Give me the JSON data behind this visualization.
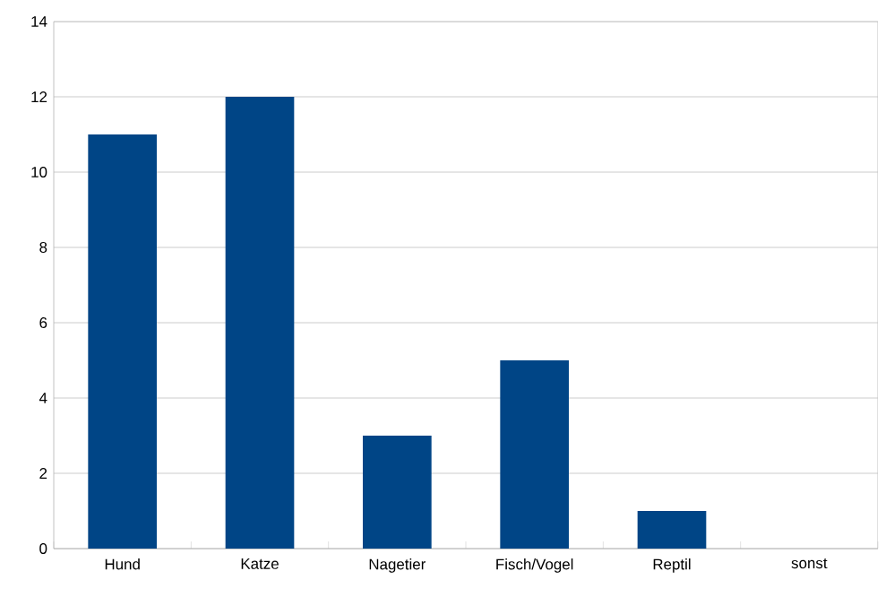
{
  "chart_data": {
    "type": "bar",
    "categories": [
      "Hund",
      "Katze",
      "Nagetier",
      "Fisch/Vogel",
      "Reptil",
      "sonst"
    ],
    "values": [
      11,
      12,
      3,
      5,
      1,
      0
    ],
    "color": "#004586",
    "ylim": [
      0,
      14
    ],
    "yticks": [
      0,
      2,
      4,
      6,
      8,
      10,
      12,
      14
    ],
    "grid": "y"
  }
}
